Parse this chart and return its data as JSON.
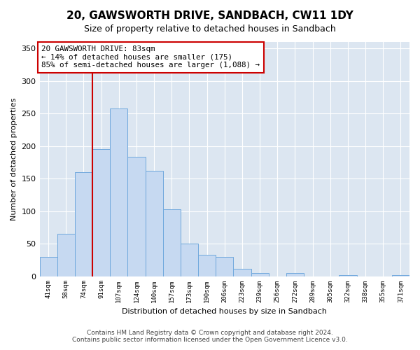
{
  "title": "20, GAWSWORTH DRIVE, SANDBACH, CW11 1DY",
  "subtitle": "Size of property relative to detached houses in Sandbach",
  "xlabel": "Distribution of detached houses by size in Sandbach",
  "ylabel": "Number of detached properties",
  "bin_labels": [
    "41sqm",
    "58sqm",
    "74sqm",
    "91sqm",
    "107sqm",
    "124sqm",
    "140sqm",
    "157sqm",
    "173sqm",
    "190sqm",
    "206sqm",
    "223sqm",
    "239sqm",
    "256sqm",
    "272sqm",
    "289sqm",
    "305sqm",
    "322sqm",
    "338sqm",
    "355sqm",
    "371sqm"
  ],
  "bar_heights": [
    30,
    65,
    160,
    195,
    258,
    184,
    162,
    103,
    50,
    33,
    30,
    11,
    5,
    0,
    5,
    0,
    0,
    2,
    0,
    0,
    2
  ],
  "bar_color": "#c6d9f1",
  "bar_edge_color": "#6fa8dc",
  "reference_line_x": 2.5,
  "reference_line_color": "#cc0000",
  "annotation_line1": "20 GAWSWORTH DRIVE: 83sqm",
  "annotation_line2": "← 14% of detached houses are smaller (175)",
  "annotation_line3": "85% of semi-detached houses are larger (1,088) →",
  "annotation_box_edge_color": "#cc0000",
  "annotation_box_face_color": "#ffffff",
  "ylim": [
    0,
    360
  ],
  "yticks": [
    0,
    50,
    100,
    150,
    200,
    250,
    300,
    350
  ],
  "footer_line1": "Contains HM Land Registry data © Crown copyright and database right 2024.",
  "footer_line2": "Contains public sector information licensed under the Open Government Licence v3.0.",
  "background_color": "#ffffff",
  "plot_background_color": "#dce6f1",
  "grid_color": "#ffffff"
}
